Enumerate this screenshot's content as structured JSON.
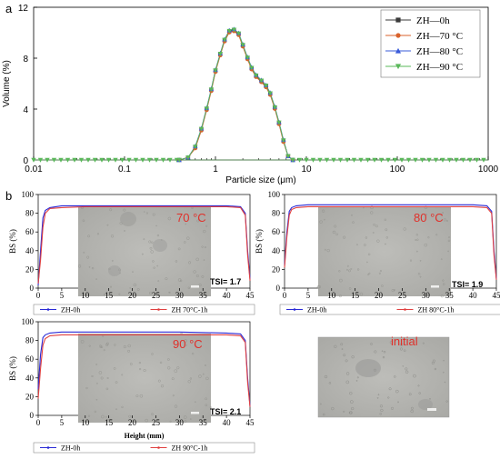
{
  "panel_labels": {
    "a": "a",
    "b": "b"
  },
  "colors": {
    "black": "#3a3a3a",
    "orange": "#d9622b",
    "blue": "#3a5bd9",
    "green": "#5ab85a",
    "bs_blue": "#2a2ad6",
    "bs_red": "#e04040",
    "photo_bg": "#b4b4b0",
    "temp_text": "#e0302a"
  },
  "chart_data": [
    {
      "type": "line",
      "panel": "a",
      "xlabel": "Particle size (μm)",
      "ylabel": "Volume (%)",
      "xscale": "log",
      "xlim": [
        0.01,
        1000
      ],
      "ylim": [
        0,
        12
      ],
      "xticks": [
        "0.01",
        "0.1",
        "1",
        "10",
        "100",
        "1000"
      ],
      "yticks": [
        "0",
        "4",
        "8",
        "12"
      ],
      "legend": "top-right",
      "series_style": [
        {
          "name": "ZH—0h",
          "color": "#3a3a3a",
          "marker": "square"
        },
        {
          "name": "ZH—70 °C",
          "color": "#d9622b",
          "marker": "circle"
        },
        {
          "name": "ZH—80 °C",
          "color": "#3a5bd9",
          "marker": "triangle-up"
        },
        {
          "name": "ZH—90 °C",
          "color": "#5ab85a",
          "marker": "triangle-down"
        }
      ],
      "x": [
        0.4,
        0.5,
        0.6,
        0.7,
        0.8,
        0.9,
        1.0,
        1.13,
        1.26,
        1.42,
        1.6,
        1.8,
        2.0,
        2.25,
        2.5,
        2.8,
        3.2,
        3.6,
        4.0,
        4.5,
        5.0,
        5.6,
        6.3,
        7.1
      ],
      "y": [
        0,
        0.2,
        1.0,
        2.4,
        4.0,
        5.5,
        7.0,
        8.3,
        9.4,
        10.1,
        10.2,
        9.9,
        9.0,
        8.0,
        7.2,
        6.6,
        6.2,
        5.8,
        5.2,
        4.1,
        2.9,
        1.5,
        0.3,
        0
      ],
      "baseline_y": 0
    },
    {
      "type": "line",
      "panel": "b-70",
      "ylabel": "BS (%)",
      "xlim": [
        0,
        45
      ],
      "ylim": [
        0,
        100
      ],
      "xticks": [
        "0",
        "5",
        "10",
        "15",
        "20",
        "25",
        "30",
        "35",
        "40",
        "45"
      ],
      "yticks": [
        "0",
        "20",
        "40",
        "60",
        "80",
        "100"
      ],
      "annotation": "70 °C",
      "tsi": "TSI= 1.7",
      "legend": [
        "ZH-0h",
        "ZH 70°C-1h"
      ],
      "x": [
        0,
        0.5,
        1,
        1.5,
        2.5,
        5,
        10,
        20,
        30,
        40,
        43,
        44,
        44.5,
        45
      ],
      "series": [
        {
          "name": "ZH-0h",
          "color": "#2a2ad6",
          "values": [
            3,
            40,
            75,
            83,
            86,
            88,
            88,
            88,
            88,
            88,
            87,
            80,
            40,
            10
          ]
        },
        {
          "name": "ZH 70°C-1h",
          "color": "#e04040",
          "values": [
            5,
            30,
            65,
            80,
            85,
            86,
            87,
            87,
            87,
            87,
            86,
            78,
            35,
            8
          ]
        }
      ]
    },
    {
      "type": "line",
      "panel": "b-80",
      "ylabel": "BS (%)",
      "xlim": [
        0,
        45
      ],
      "ylim": [
        0,
        100
      ],
      "xticks": [
        "0",
        "5",
        "10",
        "15",
        "20",
        "25",
        "30",
        "35",
        "40",
        "45"
      ],
      "yticks": [
        "0",
        "20",
        "40",
        "60",
        "80",
        "100"
      ],
      "annotation": "80 °C",
      "tsi": "TSI= 1.9",
      "legend": [
        "ZH-0h",
        "ZH 80°C-1h"
      ],
      "x": [
        0,
        0.5,
        1,
        1.5,
        2.5,
        5,
        10,
        20,
        30,
        40,
        43,
        44,
        44.5,
        45
      ],
      "series": [
        {
          "name": "ZH-0h",
          "color": "#2a2ad6",
          "values": [
            25,
            60,
            82,
            86,
            88,
            89,
            89,
            89,
            89,
            89,
            88,
            82,
            40,
            10
          ]
        },
        {
          "name": "ZH 80°C-1h",
          "color": "#e04040",
          "values": [
            22,
            55,
            78,
            84,
            86,
            87,
            87,
            87,
            87,
            87,
            86,
            80,
            35,
            9
          ]
        }
      ]
    },
    {
      "type": "line",
      "panel": "b-90",
      "ylabel": "BS (%)",
      "xlabel": "Height (mm)",
      "xlim": [
        0,
        45
      ],
      "ylim": [
        0,
        100
      ],
      "xticks": [
        "0",
        "5",
        "10",
        "15",
        "20",
        "25",
        "30",
        "35",
        "40",
        "45"
      ],
      "yticks": [
        "0",
        "20",
        "40",
        "60",
        "80",
        "100"
      ],
      "annotation": "90 °C",
      "tsi": "TSI= 2.1",
      "legend": [
        "ZH-0h",
        "ZH 90°C-1h"
      ],
      "x": [
        0,
        0.5,
        1,
        1.5,
        2.5,
        5,
        10,
        20,
        30,
        40,
        43,
        44,
        44.5,
        45
      ],
      "series": [
        {
          "name": "ZH-0h",
          "color": "#2a2ad6",
          "values": [
            28,
            65,
            83,
            86,
            88,
            89,
            89,
            89,
            89,
            88,
            87,
            80,
            40,
            10
          ]
        },
        {
          "name": "ZH 90°C-1h",
          "color": "#e04040",
          "values": [
            18,
            50,
            75,
            82,
            85,
            86,
            86,
            86,
            86,
            86,
            85,
            78,
            35,
            9
          ]
        }
      ]
    }
  ],
  "initial_label": "initial"
}
